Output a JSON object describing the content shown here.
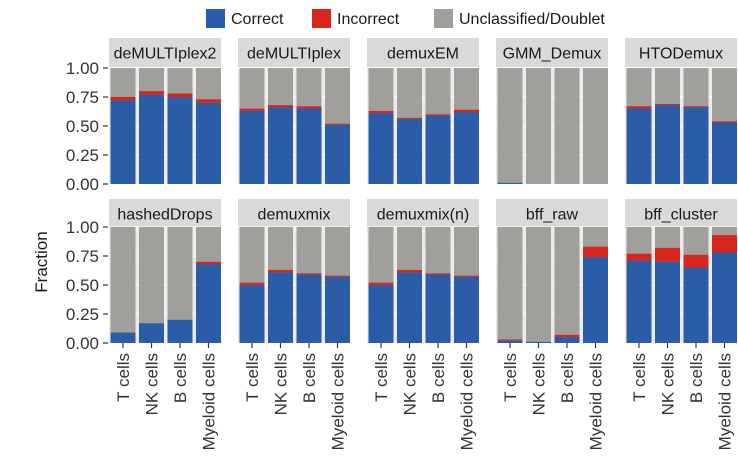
{
  "chart_data": {
    "type": "bar",
    "stacked": true,
    "ylabel": "Fraction",
    "ylim": [
      0,
      1
    ],
    "yticks": [
      0,
      0.25,
      0.5,
      0.75,
      1
    ],
    "ytick_labels": [
      "0.00",
      "0.25",
      "0.50",
      "0.75",
      "1.00"
    ],
    "categories": [
      "T cells",
      "NK cells",
      "B cells",
      "Myeloid cells"
    ],
    "legend": [
      {
        "name": "Correct",
        "color": "#2a5ca8"
      },
      {
        "name": "Incorrect",
        "color": "#d7261e"
      },
      {
        "name": "Unclassified/Doublet",
        "color": "#a09f9c"
      }
    ],
    "facets": [
      {
        "title": "deMULTIplex2",
        "correct": [
          0.72,
          0.77,
          0.75,
          0.7
        ],
        "incorrect": [
          0.03,
          0.03,
          0.03,
          0.03
        ]
      },
      {
        "title": "deMULTIplex",
        "correct": [
          0.63,
          0.66,
          0.65,
          0.51
        ],
        "incorrect": [
          0.02,
          0.02,
          0.02,
          0.01
        ]
      },
      {
        "title": "demuxEM",
        "correct": [
          0.61,
          0.56,
          0.59,
          0.62
        ],
        "incorrect": [
          0.02,
          0.01,
          0.01,
          0.02
        ]
      },
      {
        "title": "GMM_Demux",
        "correct": [
          0.01,
          0.0,
          0.0,
          0.0
        ],
        "incorrect": [
          0.0,
          0.0,
          0.0,
          0.0
        ]
      },
      {
        "title": "HTODemux",
        "correct": [
          0.65,
          0.68,
          0.66,
          0.53
        ],
        "incorrect": [
          0.02,
          0.01,
          0.01,
          0.01
        ]
      },
      {
        "title": "hashedDrops",
        "correct": [
          0.09,
          0.17,
          0.2,
          0.68
        ],
        "incorrect": [
          0.0,
          0.0,
          0.0,
          0.02
        ]
      },
      {
        "title": "demuxmix",
        "correct": [
          0.5,
          0.61,
          0.59,
          0.57
        ],
        "incorrect": [
          0.02,
          0.02,
          0.01,
          0.01
        ]
      },
      {
        "title": "demuxmix(n)",
        "correct": [
          0.5,
          0.61,
          0.59,
          0.57
        ],
        "incorrect": [
          0.02,
          0.02,
          0.01,
          0.01
        ]
      },
      {
        "title": "bff_raw",
        "correct": [
          0.02,
          0.01,
          0.05,
          0.74
        ],
        "incorrect": [
          0.01,
          0.0,
          0.02,
          0.09
        ]
      },
      {
        "title": "bff_cluster",
        "correct": [
          0.71,
          0.7,
          0.65,
          0.78
        ],
        "incorrect": [
          0.06,
          0.12,
          0.11,
          0.15
        ]
      }
    ]
  }
}
